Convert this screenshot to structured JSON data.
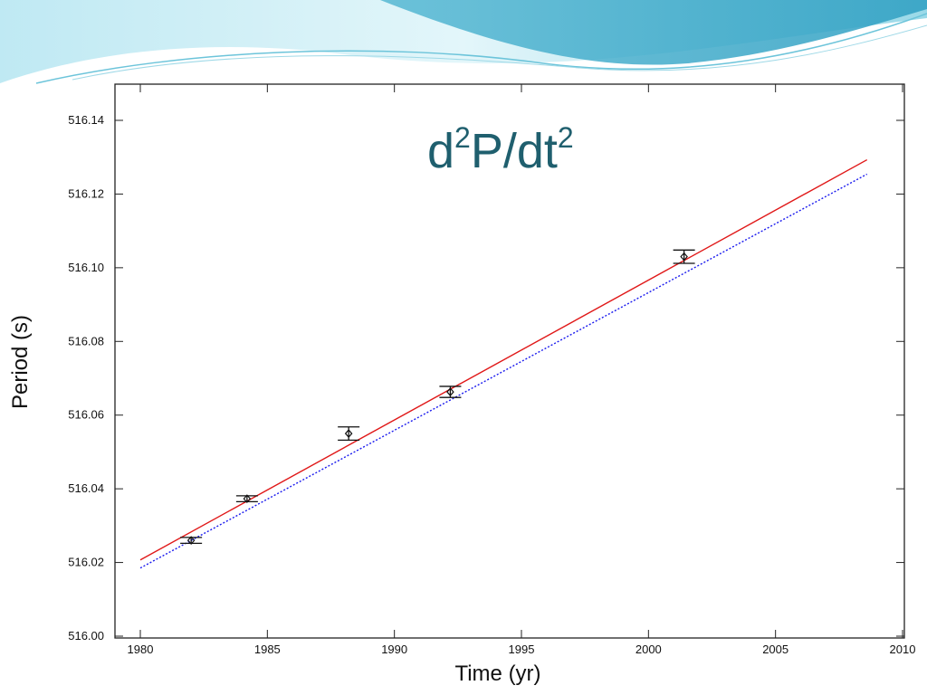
{
  "slide": {
    "title_base1": "d",
    "title_sup1": "2",
    "title_base2": "P/dt",
    "title_sup2": "2"
  },
  "colors": {
    "banner_light": "#d6f1f7",
    "banner_mid": "#8fd6e6",
    "banner_dark": "#3fa9c9",
    "fit_red": "#e01818",
    "fit_blue": "#1a1aee",
    "data_black": "#111111",
    "title_teal": "#1f5f6e"
  },
  "chart_data": {
    "type": "scatter",
    "xlabel": "Time (yr)",
    "ylabel": "Period (s)",
    "xlim": [
      1980,
      2010
    ],
    "ylim": [
      516.0,
      516.145
    ],
    "x_ticks": [
      1980,
      1985,
      1990,
      1995,
      2000,
      2005,
      2010
    ],
    "x_tick_labels": [
      "1980",
      "1985",
      "1990",
      "1995",
      "2000",
      "2005",
      "2010"
    ],
    "y_ticks": [
      516.0,
      516.02,
      516.04,
      516.06,
      516.08,
      516.1,
      516.12,
      516.14
    ],
    "y_tick_labels": [
      "516.00",
      "516.02",
      "516.04",
      "516.06",
      "516.08",
      "516.10",
      "516.12",
      "516.14"
    ],
    "grid": false,
    "points": [
      {
        "x": 1982.0,
        "y": 516.026,
        "err": 0.0008
      },
      {
        "x": 1984.2,
        "y": 516.0373,
        "err": 0.0008
      },
      {
        "x": 1988.2,
        "y": 516.055,
        "err": 0.0018
      },
      {
        "x": 1992.2,
        "y": 516.0663,
        "err": 0.0015
      },
      {
        "x": 2001.4,
        "y": 516.103,
        "err": 0.0018
      }
    ],
    "fits": [
      {
        "color": "red",
        "style": "solid",
        "x": [
          1980.0,
          2008.6
        ],
        "y": [
          516.0207,
          516.1293
        ]
      },
      {
        "color": "blue",
        "style": "dotted",
        "x": [
          1980.0,
          2008.6
        ],
        "y": [
          516.0185,
          516.1254
        ]
      }
    ]
  }
}
